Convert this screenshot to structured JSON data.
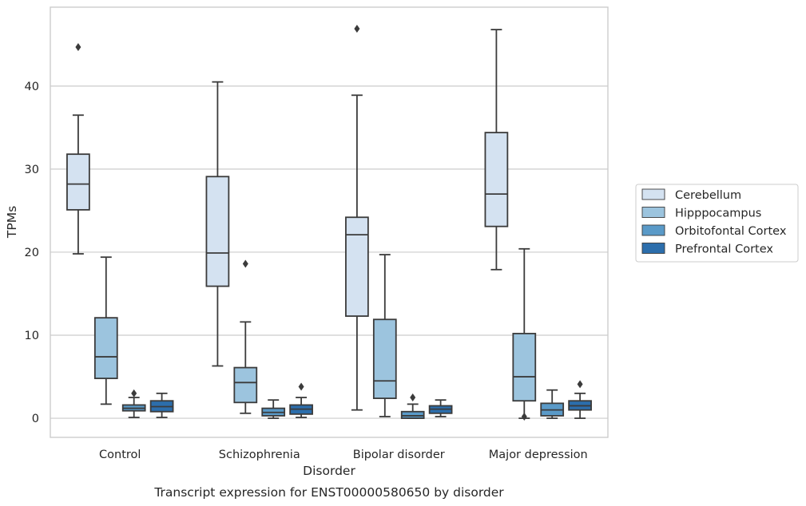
{
  "chart_data": {
    "type": "box",
    "caption": "Transcript expression for ENST00000580650 by disorder",
    "xlabel": "Disorder",
    "ylabel": "TPMs",
    "ylim": [
      -2.3,
      49.5
    ],
    "yticks": [
      0,
      10,
      20,
      30,
      40
    ],
    "grid": "horizontal",
    "legend_position": "right",
    "categories": [
      "Control",
      "Schizophrenia",
      "Bipolar disorder",
      "Major depression"
    ],
    "series": [
      {
        "name": "Cerebellum",
        "color": "#d4e2f1",
        "boxes": [
          {
            "whisker_low": 19.8,
            "q1": 25.1,
            "median": 28.2,
            "q3": 31.8,
            "whisker_high": 36.5,
            "outliers": [
              44.7
            ]
          },
          {
            "whisker_low": 6.3,
            "q1": 15.9,
            "median": 19.9,
            "q3": 29.1,
            "whisker_high": 40.5,
            "outliers": []
          },
          {
            "whisker_low": 1.0,
            "q1": 12.3,
            "median": 22.1,
            "q3": 24.2,
            "whisker_high": 38.9,
            "outliers": [
              46.9
            ]
          },
          {
            "whisker_low": 17.9,
            "q1": 23.1,
            "median": 27.0,
            "q3": 34.4,
            "whisker_high": 46.8,
            "outliers": []
          }
        ]
      },
      {
        "name": "Hipppocampus",
        "color": "#9cc4de",
        "boxes": [
          {
            "whisker_low": 1.7,
            "q1": 4.8,
            "median": 7.4,
            "q3": 12.1,
            "whisker_high": 19.4,
            "outliers": []
          },
          {
            "whisker_low": 0.6,
            "q1": 1.9,
            "median": 4.3,
            "q3": 6.1,
            "whisker_high": 11.6,
            "outliers": [
              18.6
            ]
          },
          {
            "whisker_low": 0.2,
            "q1": 2.4,
            "median": 4.5,
            "q3": 11.9,
            "whisker_high": 19.7,
            "outliers": []
          },
          {
            "whisker_low": 0.0,
            "q1": 2.1,
            "median": 5.0,
            "q3": 10.2,
            "whisker_high": 20.4,
            "outliers": [
              0.2
            ]
          }
        ]
      },
      {
        "name": "Orbitofontal Cortex",
        "color": "#5a9ac8",
        "boxes": [
          {
            "whisker_low": 0.1,
            "q1": 0.9,
            "median": 1.2,
            "q3": 1.6,
            "whisker_high": 2.5,
            "outliers": [
              3.0
            ]
          },
          {
            "whisker_low": 0.0,
            "q1": 0.3,
            "median": 0.7,
            "q3": 1.2,
            "whisker_high": 2.2,
            "outliers": []
          },
          {
            "whisker_low": 0.0,
            "q1": 0.0,
            "median": 0.3,
            "q3": 0.8,
            "whisker_high": 1.7,
            "outliers": [
              2.5
            ]
          },
          {
            "whisker_low": 0.0,
            "q1": 0.3,
            "median": 1.0,
            "q3": 1.8,
            "whisker_high": 3.4,
            "outliers": []
          }
        ]
      },
      {
        "name": "Prefrontal Cortex",
        "color": "#2c6eac",
        "boxes": [
          {
            "whisker_low": 0.1,
            "q1": 0.8,
            "median": 1.4,
            "q3": 2.1,
            "whisker_high": 3.0,
            "outliers": []
          },
          {
            "whisker_low": 0.1,
            "q1": 0.5,
            "median": 1.1,
            "q3": 1.6,
            "whisker_high": 2.5,
            "outliers": [
              3.8
            ]
          },
          {
            "whisker_low": 0.2,
            "q1": 0.6,
            "median": 1.1,
            "q3": 1.5,
            "whisker_high": 2.2,
            "outliers": []
          },
          {
            "whisker_low": 0.0,
            "q1": 1.0,
            "median": 1.5,
            "q3": 2.1,
            "whisker_high": 3.0,
            "outliers": [
              4.1
            ]
          }
        ]
      }
    ]
  }
}
